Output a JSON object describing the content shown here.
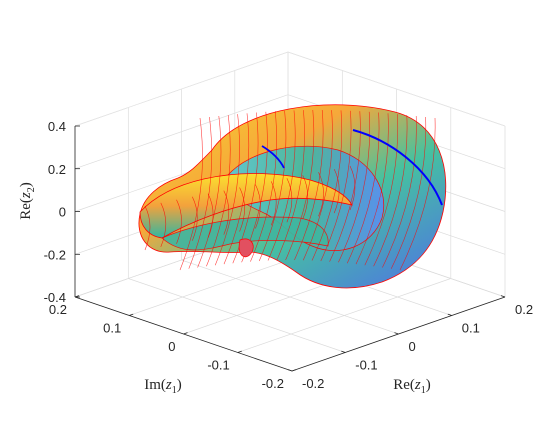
{
  "chart_data": {
    "type": "surface",
    "title": "",
    "grid": true,
    "colormap": "parula",
    "colors": {
      "axis": "#262626",
      "grid": "#dcdcdc",
      "mesh_lines": "#ff0000",
      "highlight_curve": "#0000ff"
    },
    "axes": {
      "x": {
        "label": "Re",
        "var": "z",
        "sub": "1",
        "lim": [
          -0.2,
          0.2
        ],
        "ticks": [
          -0.2,
          -0.1,
          0,
          0.1,
          0.2
        ],
        "tick_labels": [
          "-0.2",
          "-0.1",
          "0",
          "0.1",
          "0.2"
        ]
      },
      "y": {
        "label": "Im",
        "var": "z",
        "sub": "1",
        "lim": [
          -0.2,
          0.2
        ],
        "ticks": [
          -0.2,
          -0.1,
          0,
          0.1,
          0.2
        ],
        "tick_labels": [
          "-0.2",
          "-0.1",
          "0",
          "0.1",
          "0.2"
        ]
      },
      "z": {
        "label": "Re",
        "var": "z",
        "sub": "2",
        "lim": [
          -0.4,
          0.4
        ],
        "ticks": [
          -0.4,
          -0.2,
          0,
          0.2,
          0.4
        ],
        "tick_labels": [
          "-0.4",
          "-0.2",
          "0",
          "0.2",
          "0.4"
        ]
      }
    }
  }
}
